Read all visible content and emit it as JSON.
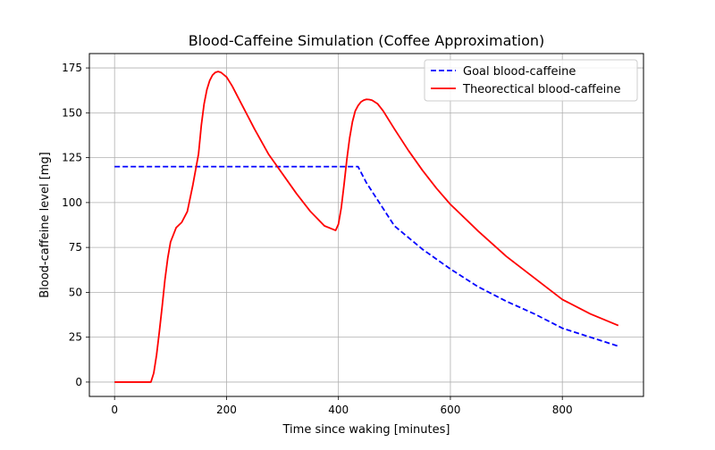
{
  "chart_data": {
    "type": "line",
    "title": "Blood-Caffeine Simulation (Coffee Approximation)",
    "xlabel": "Time since waking [minutes]",
    "ylabel": "Blood-caffeine level [mg]",
    "xlim": [
      -45,
      945
    ],
    "ylim": [
      -8,
      183
    ],
    "xticks": [
      0,
      200,
      400,
      600,
      800
    ],
    "yticks": [
      0,
      25,
      50,
      75,
      100,
      125,
      150,
      175
    ],
    "grid": true,
    "legend_position": "top-right",
    "series": [
      {
        "name": "Goal blood-caffeine",
        "color": "#0000ff",
        "style": "dashed",
        "x": [
          0,
          50,
          100,
          150,
          200,
          250,
          300,
          350,
          400,
          435,
          450,
          500,
          550,
          600,
          650,
          700,
          750,
          800,
          850,
          900
        ],
        "y": [
          120,
          120,
          120,
          120,
          120,
          120,
          120,
          120,
          120,
          120,
          111,
          87,
          74,
          63,
          53,
          45,
          38,
          30,
          25,
          20
        ]
      },
      {
        "name": "Theorectical blood-caffeine",
        "color": "#ff0000",
        "style": "solid",
        "x": [
          0,
          50,
          65,
          70,
          75,
          80,
          85,
          90,
          95,
          100,
          110,
          120,
          130,
          140,
          150,
          155,
          160,
          165,
          170,
          175,
          180,
          185,
          190,
          200,
          210,
          225,
          250,
          275,
          300,
          325,
          350,
          375,
          395,
          400,
          405,
          410,
          415,
          420,
          425,
          430,
          435,
          440,
          445,
          450,
          455,
          460,
          470,
          480,
          500,
          525,
          550,
          575,
          600,
          650,
          700,
          750,
          800,
          850,
          900
        ],
        "y": [
          0,
          0,
          0,
          5,
          15,
          28,
          42,
          57,
          69,
          78,
          86,
          89,
          95,
          110,
          127,
          143,
          155,
          163,
          168,
          171,
          172.5,
          173,
          172.5,
          170,
          165,
          156,
          141,
          127,
          116,
          105,
          95,
          87,
          84.5,
          88,
          97,
          110,
          124,
          136,
          145,
          151,
          154,
          156,
          157,
          157.5,
          157.4,
          157,
          155,
          151,
          141,
          129,
          118,
          108,
          99,
          84,
          70,
          58,
          46,
          38,
          31.5
        ]
      }
    ]
  }
}
